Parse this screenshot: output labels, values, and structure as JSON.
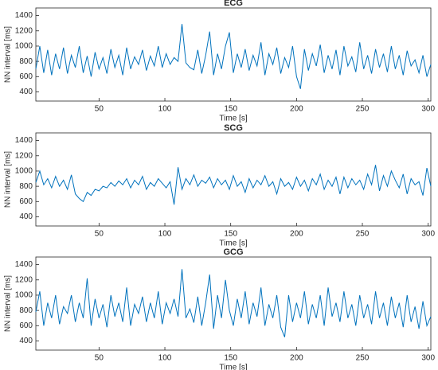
{
  "chart_data": [
    {
      "type": "line",
      "title": "ECG",
      "xlabel": "Time [s]",
      "ylabel": "NN interval [ms]",
      "color": "#0072bd",
      "x": [
        2,
        5,
        8,
        11,
        14,
        17,
        20,
        23,
        26,
        29,
        32,
        35,
        38,
        41,
        44,
        47,
        50,
        53,
        56,
        59,
        62,
        65,
        68,
        71,
        74,
        77,
        80,
        83,
        86,
        89,
        92,
        95,
        98,
        101,
        104,
        107,
        110,
        113,
        116,
        119,
        122,
        125,
        128,
        131,
        134,
        137,
        140,
        143,
        146,
        149,
        152,
        155,
        158,
        161,
        164,
        167,
        170,
        173,
        176,
        179,
        182,
        185,
        188,
        191,
        194,
        197,
        200,
        203,
        206,
        209,
        212,
        215,
        218,
        221,
        224,
        227,
        230,
        233,
        236,
        239,
        242,
        245,
        248,
        251,
        254,
        257,
        260,
        263,
        266,
        269,
        272,
        275,
        278,
        281,
        284,
        287,
        290,
        293,
        296,
        299,
        302
      ],
      "values": [
        700,
        1000,
        650,
        950,
        620,
        900,
        700,
        980,
        640,
        880,
        720,
        1000,
        650,
        870,
        600,
        920,
        700,
        850,
        640,
        960,
        720,
        880,
        620,
        980,
        700,
        860,
        760,
        950,
        680,
        870,
        740,
        1000,
        720,
        900,
        760,
        850,
        800,
        1290,
        780,
        720,
        690,
        950,
        640,
        880,
        1190,
        620,
        900,
        700,
        1000,
        1180,
        650,
        900,
        720,
        960,
        680,
        880,
        740,
        1050,
        620,
        900,
        760,
        980,
        640,
        850,
        720,
        1000,
        600,
        440,
        960,
        680,
        900,
        740,
        1020,
        650,
        880,
        700,
        950,
        620,
        1000,
        740,
        860,
        660,
        1050,
        700,
        880,
        640,
        960,
        720,
        900,
        660,
        1000,
        700,
        880,
        620,
        940,
        740,
        820,
        650,
        880,
        600,
        760
      ],
      "xlim": [
        2,
        302
      ],
      "ylim": [
        280,
        1500
      ],
      "xticks": [
        50,
        100,
        150,
        200,
        250,
        300
      ],
      "yticks": [
        400,
        600,
        800,
        1000,
        1200,
        1400
      ]
    },
    {
      "type": "line",
      "title": "SCG",
      "xlabel": "Time [s]",
      "ylabel": "NN interval [ms]",
      "color": "#0072bd",
      "x": [
        2,
        5,
        8,
        11,
        14,
        17,
        20,
        23,
        26,
        29,
        32,
        35,
        38,
        41,
        44,
        47,
        50,
        53,
        56,
        59,
        62,
        65,
        68,
        71,
        74,
        77,
        80,
        83,
        86,
        89,
        92,
        95,
        98,
        101,
        104,
        107,
        110,
        113,
        116,
        119,
        122,
        125,
        128,
        131,
        134,
        137,
        140,
        143,
        146,
        149,
        152,
        155,
        158,
        161,
        164,
        167,
        170,
        173,
        176,
        179,
        182,
        185,
        188,
        191,
        194,
        197,
        200,
        203,
        206,
        209,
        212,
        215,
        218,
        221,
        224,
        227,
        230,
        233,
        236,
        239,
        242,
        245,
        248,
        251,
        254,
        257,
        260,
        263,
        266,
        269,
        272,
        275,
        278,
        281,
        284,
        287,
        290,
        293,
        296,
        299,
        302
      ],
      "values": [
        850,
        1000,
        820,
        900,
        780,
        930,
        800,
        880,
        760,
        950,
        700,
        640,
        600,
        720,
        680,
        760,
        740,
        800,
        780,
        850,
        800,
        870,
        820,
        900,
        780,
        880,
        820,
        930,
        760,
        850,
        800,
        900,
        840,
        780,
        860,
        560,
        1050,
        760,
        900,
        820,
        950,
        800,
        880,
        840,
        920,
        780,
        900,
        820,
        880,
        760,
        940,
        800,
        860,
        720,
        900,
        780,
        880,
        820,
        940,
        800,
        860,
        700,
        900,
        800,
        850,
        760,
        920,
        800,
        880,
        740,
        900,
        820,
        960,
        760,
        880,
        800,
        920,
        700,
        920,
        780,
        900,
        820,
        880,
        760,
        960,
        820,
        1080,
        740,
        940,
        800,
        1000,
        880,
        780,
        960,
        700,
        900,
        820,
        860,
        680,
        1040,
        800
      ],
      "xlim": [
        2,
        302
      ],
      "ylim": [
        280,
        1500
      ],
      "xticks": [
        50,
        100,
        150,
        200,
        250,
        300
      ],
      "yticks": [
        400,
        600,
        800,
        1000,
        1200,
        1400
      ]
    },
    {
      "type": "line",
      "title": "GCG",
      "xlabel": "Time [s]",
      "ylabel": "NN interval [ms]",
      "color": "#0072bd",
      "x": [
        2,
        5,
        8,
        11,
        14,
        17,
        20,
        23,
        26,
        29,
        32,
        35,
        38,
        41,
        44,
        47,
        50,
        53,
        56,
        59,
        62,
        65,
        68,
        71,
        74,
        77,
        80,
        83,
        86,
        89,
        92,
        95,
        98,
        101,
        104,
        107,
        110,
        113,
        116,
        119,
        122,
        125,
        128,
        131,
        134,
        137,
        140,
        143,
        146,
        149,
        152,
        155,
        158,
        161,
        164,
        167,
        170,
        173,
        176,
        179,
        182,
        185,
        188,
        191,
        194,
        197,
        200,
        203,
        206,
        209,
        212,
        215,
        218,
        221,
        224,
        227,
        230,
        233,
        236,
        239,
        242,
        245,
        248,
        251,
        254,
        257,
        260,
        263,
        266,
        269,
        272,
        275,
        278,
        281,
        284,
        287,
        290,
        293,
        296,
        299,
        302
      ],
      "values": [
        780,
        1050,
        600,
        900,
        700,
        1000,
        620,
        850,
        760,
        1000,
        650,
        900,
        700,
        1220,
        600,
        950,
        700,
        880,
        580,
        1000,
        720,
        900,
        650,
        1100,
        600,
        880,
        760,
        980,
        650,
        900,
        700,
        1050,
        620,
        900,
        760,
        950,
        720,
        1340,
        700,
        820,
        640,
        980,
        600,
        900,
        1270,
        560,
        1000,
        700,
        1200,
        800,
        600,
        950,
        700,
        1050,
        620,
        900,
        720,
        1100,
        600,
        880,
        700,
        1000,
        580,
        450,
        1000,
        650,
        900,
        700,
        1050,
        620,
        880,
        700,
        1000,
        600,
        1100,
        720,
        900,
        650,
        1050,
        700,
        880,
        600,
        1000,
        700,
        880,
        620,
        1050,
        700,
        900,
        600,
        980,
        700,
        900,
        580,
        1000,
        650,
        850,
        560,
        920,
        600,
        720
      ],
      "xlim": [
        2,
        302
      ],
      "ylim": [
        280,
        1500
      ],
      "xticks": [
        50,
        100,
        150,
        200,
        250,
        300
      ],
      "yticks": [
        400,
        600,
        800,
        1000,
        1200,
        1400
      ]
    }
  ]
}
